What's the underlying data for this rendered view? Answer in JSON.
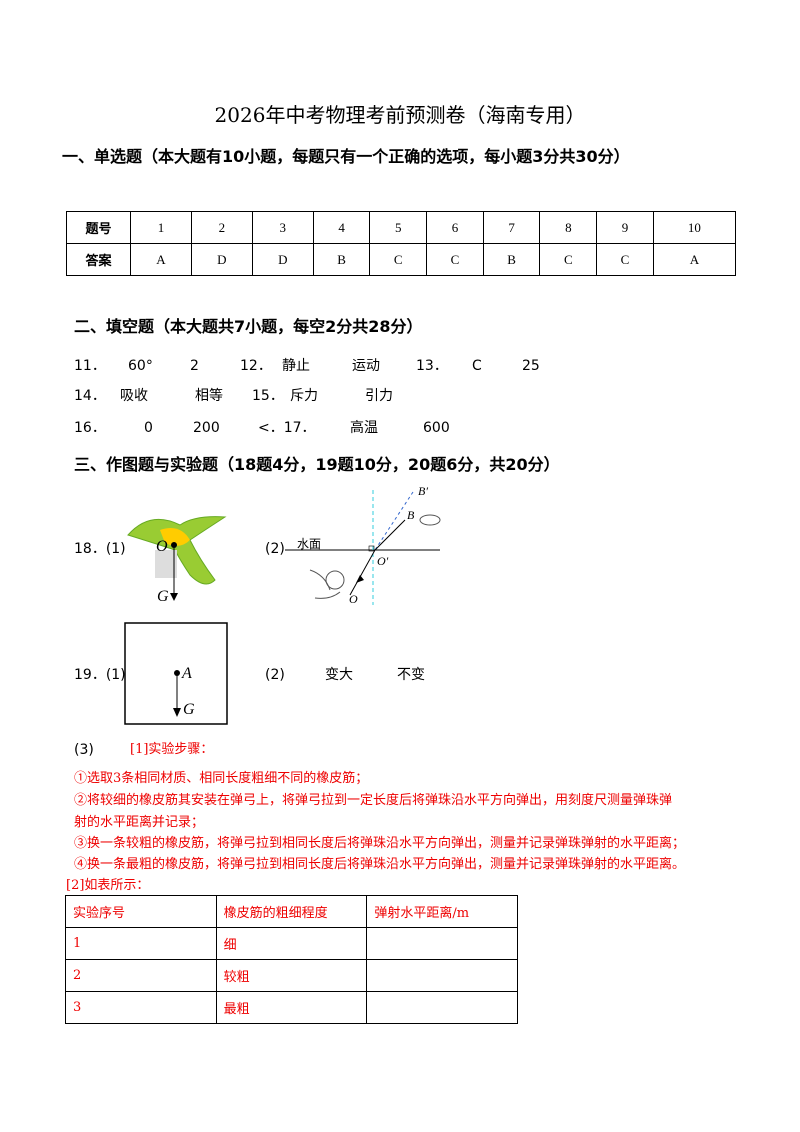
{
  "title": "2026年中考物理考前预测卷（海南专用）",
  "section1": {
    "heading": "一、单选题（本大题有10小题，每题只有一个正确的选项，每小题3分共30分）",
    "table": {
      "rows": [
        [
          "题号",
          "1",
          "2",
          "3",
          "4",
          "5",
          "6",
          "7",
          "8",
          "9",
          "10"
        ],
        [
          "答案",
          "A",
          "D",
          "D",
          "B",
          "C",
          "C",
          "B",
          "C",
          "C",
          "A"
        ]
      ]
    }
  },
  "section2": {
    "heading": "二、填空题（本大题共7小题，每空2分共28分）",
    "lines": [
      [
        "11．",
        "60°",
        "2",
        "12．",
        "静止",
        "运动",
        "13．",
        "C",
        "25"
      ],
      [
        "14．",
        "吸收",
        "相等",
        "15．",
        "斥力",
        "引力"
      ],
      [
        "16．",
        "0",
        "200",
        "<．17．",
        "高温",
        "600"
      ]
    ]
  },
  "section3": {
    "heading": "三、作图题与实验题（18题4分，19题10分，20题6分，共20分）",
    "q18": {
      "label": "18．(1)",
      "fig1": {
        "o": "O",
        "g": "G"
      },
      "part2": "(2)",
      "fig2": {
        "b_prime": "B′",
        "b": "B",
        "water": "水面",
        "o_prime": "O′",
        "o": "O"
      }
    },
    "q19": {
      "label": "19．(1)",
      "fig": {
        "a": "A",
        "g": "G"
      },
      "part2": "(2)",
      "answers": [
        "变大",
        "不变"
      ]
    },
    "q3": {
      "label": "(3)",
      "steps_heading": "[1]实验步骤：",
      "lines": [
        "①选取3条相同材质、相同长度粗细不同的橡皮筋；",
        "②将较细的橡皮筋其安装在弹弓上，将弹弓拉到一定长度后将弹珠沿水平方向弹出，用刻度尺测量弹珠弹",
        "射的水平距离并记录；",
        "③换一条较粗的橡皮筋，将弹弓拉到相同长度后将弹珠沿水平方向弹出，测量并记录弹珠弹射的水平距离；",
        "④换一条最粗的橡皮筋，将弹弓拉到相同长度后将弹珠沿水平方向弹出，测量并记录弹珠弹射的水平距离。"
      ],
      "table_heading": "[2]如表所示：",
      "table": {
        "rows": [
          [
            "实验序号",
            "橡皮筋的粗细程度",
            "弹射水平距离/m"
          ],
          [
            "1",
            "细",
            ""
          ],
          [
            "2",
            "较粗",
            ""
          ],
          [
            "3",
            "最粗",
            ""
          ]
        ]
      }
    }
  }
}
